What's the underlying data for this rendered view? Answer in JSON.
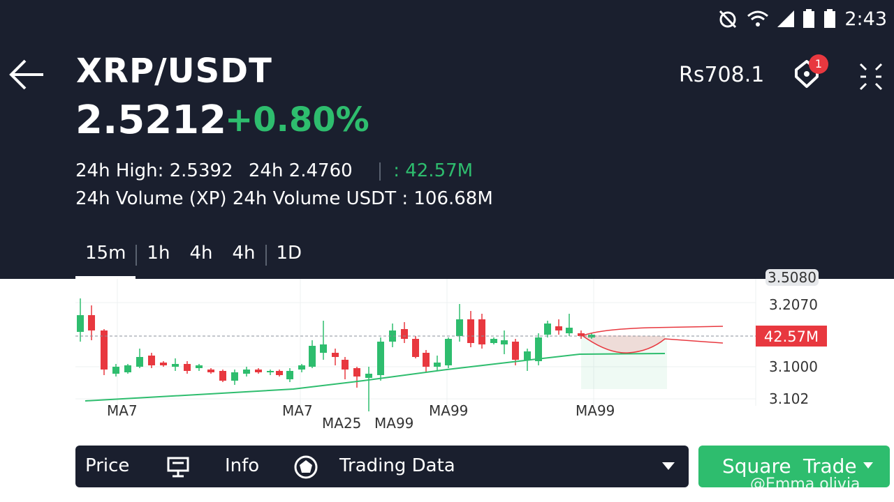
{
  "status_bar": {
    "time": "2:43",
    "icons": [
      "alarm-off-icon",
      "wifi-icon",
      "signal-icon",
      "battery-icon",
      "battery-icon"
    ]
  },
  "header": {
    "pair": "XRP/USDT",
    "price": "2.5212",
    "change": "+0.80%",
    "balance": "Rs708.1",
    "alert_badge": "1"
  },
  "stats": {
    "high_label": "24h High: 2.5392",
    "low_label": "24h 2.4760",
    "volume_right": ": 42.57M",
    "volume_xrp_label": "24h Volume (XP)",
    "volume_usdt_prefix": "24h",
    "volume_usdt_label": "Volume USDT : 106.68M"
  },
  "tabs": [
    "15m",
    "1h",
    "4h",
    "4h",
    "1D"
  ],
  "chart": {
    "price_labels": [
      "3.5080",
      "3.2070",
      "42.57M",
      "3.1000",
      "3.102"
    ],
    "ma_labels": [
      "MA7",
      "MA7",
      "MA25",
      "MA99",
      "MA99",
      "MA99"
    ]
  },
  "bottom_bar": {
    "price": "Price",
    "info": "Info",
    "trading_data": "Trading Data",
    "square": "Square",
    "trade": "Trade"
  },
  "watermark": "@Emma olivia",
  "colors": {
    "background_dark": "#1a1f2e",
    "up_green": "#2ebd6e",
    "down_red": "#e8383f"
  }
}
